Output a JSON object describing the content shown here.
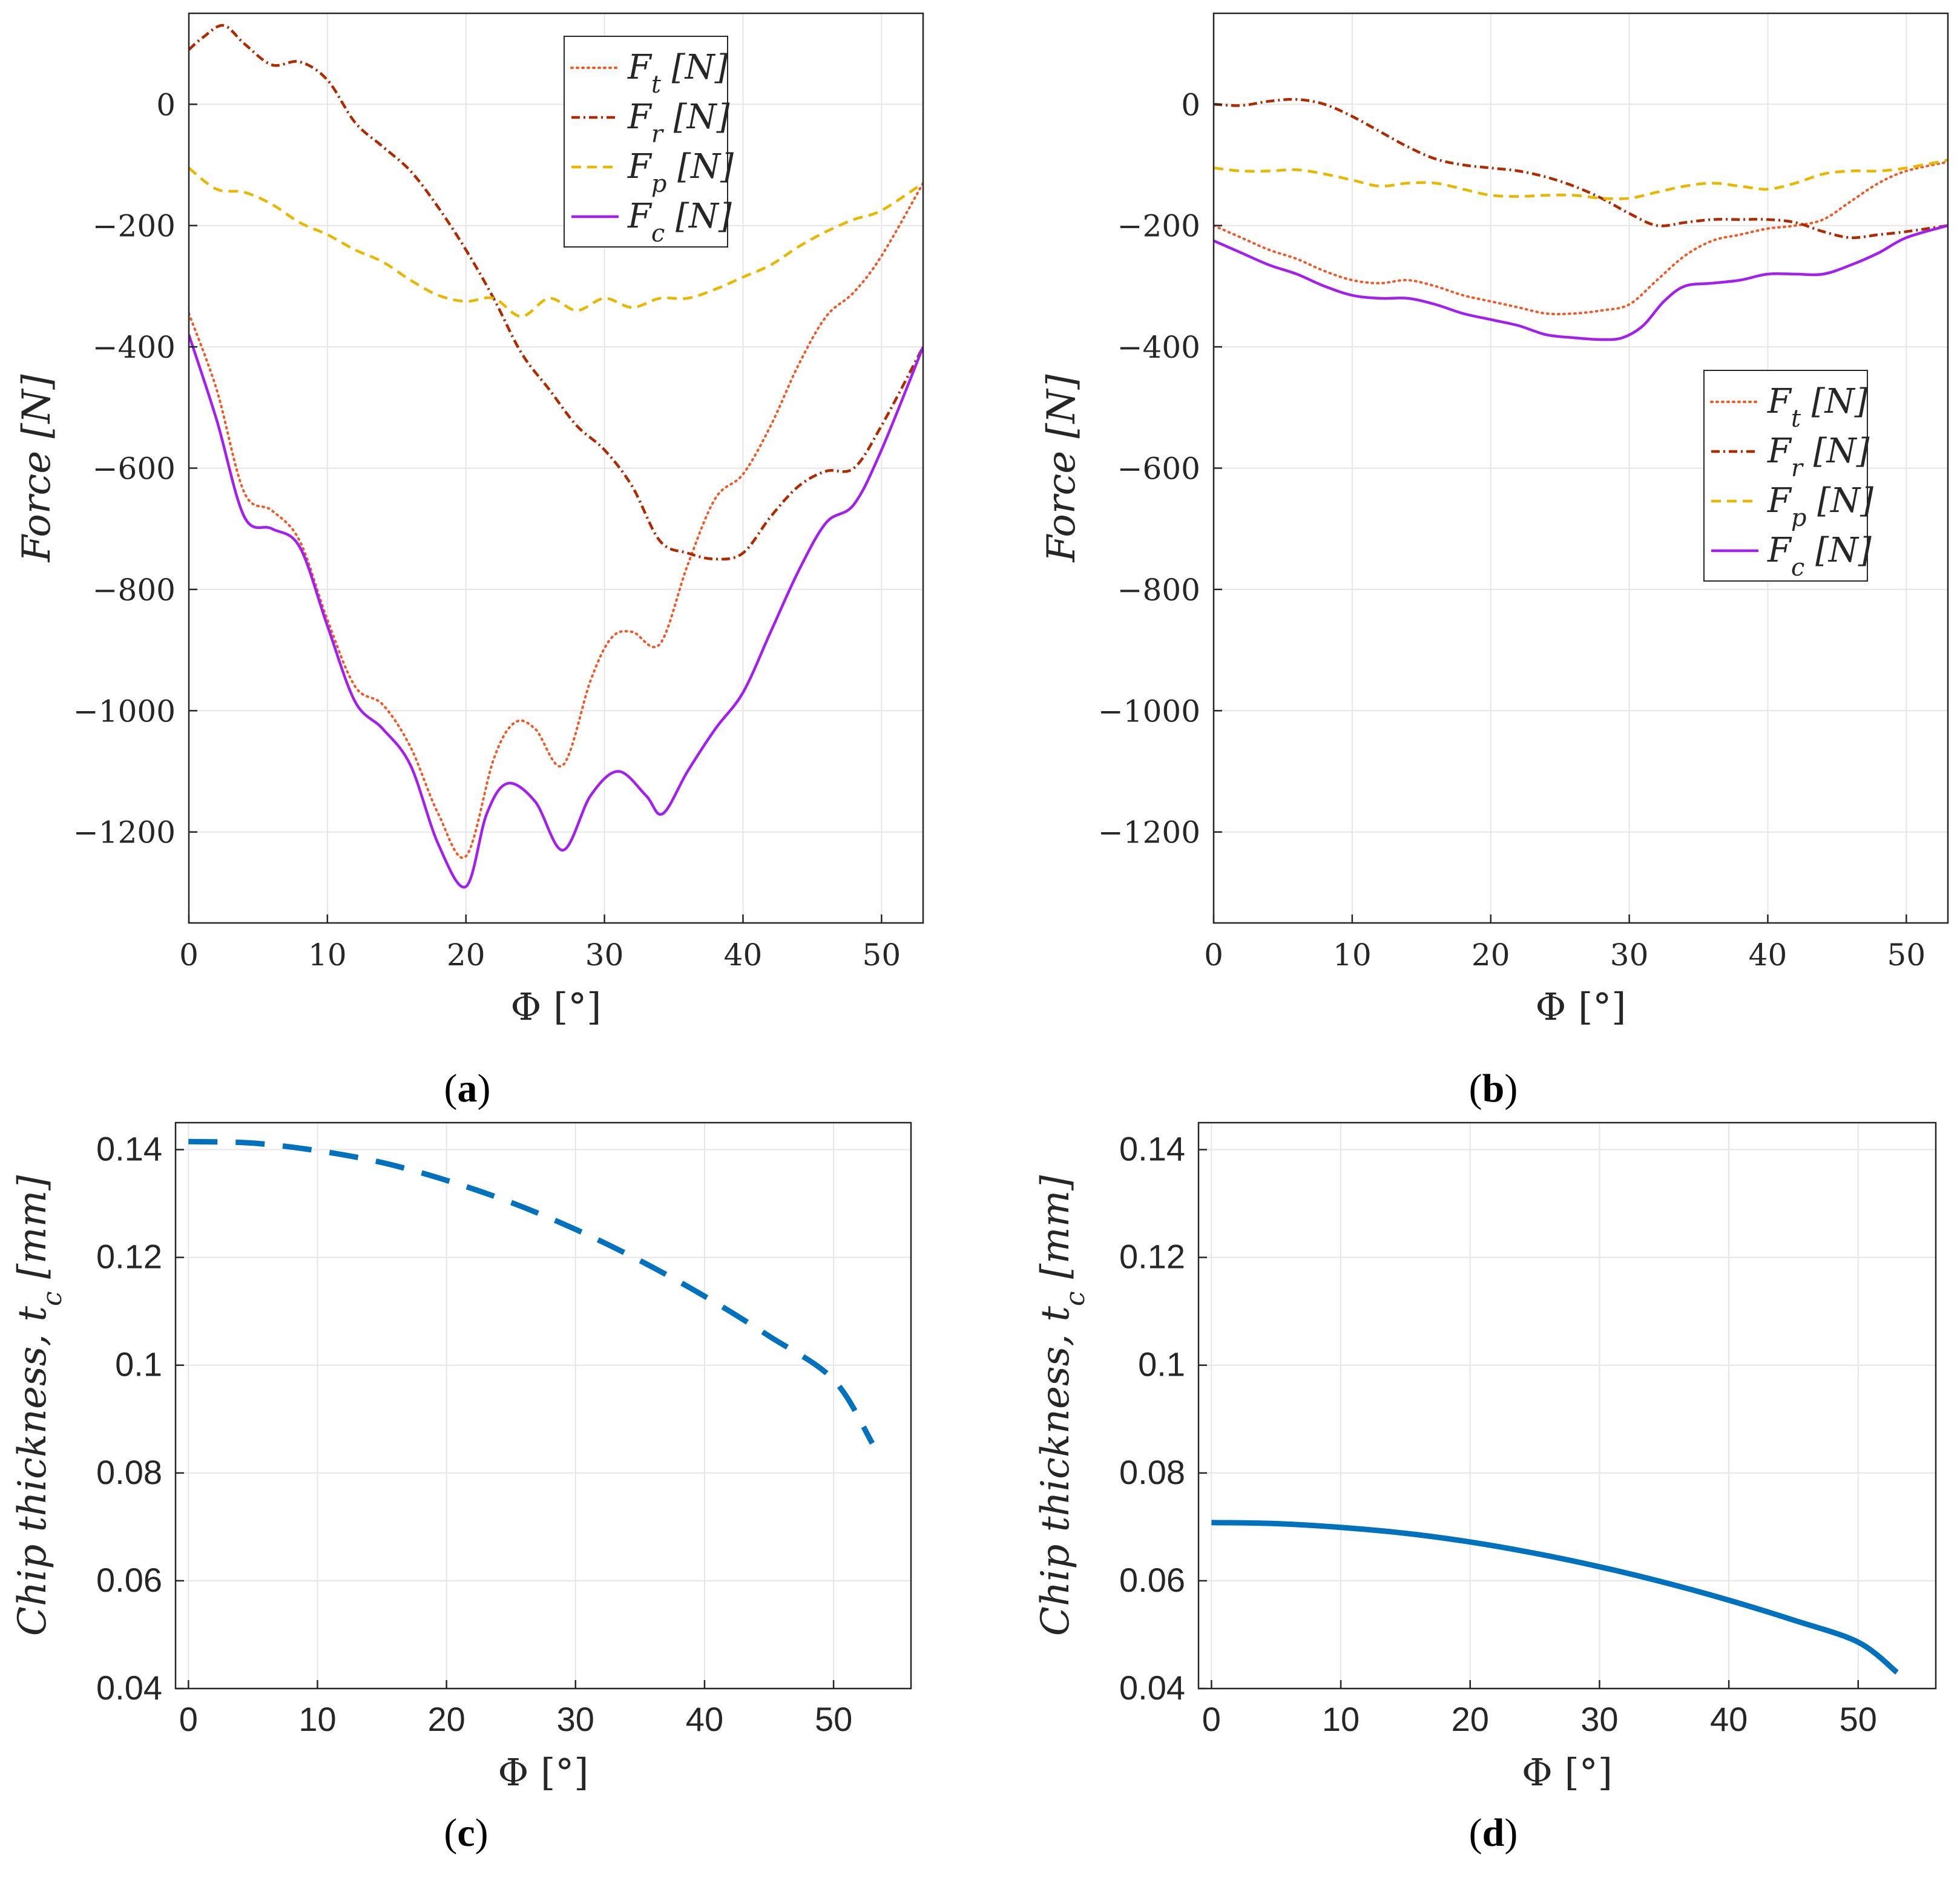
{
  "colors": {
    "Ft": "#f05a28",
    "Fr": "#b02a00",
    "Fp": "#e8b800",
    "Fc": "#a31ff0",
    "chip": "#0072bd",
    "grid": "#e6e6e6",
    "axis": "#262626"
  },
  "chart_data": [
    {
      "id": "a",
      "caption": {
        "open": "(",
        "letter": "a",
        "close": ")"
      },
      "type": "line",
      "ylabel": "Force [N]",
      "xlabel": "Φ [°]",
      "xlim": [
        0,
        53
      ],
      "ylim": [
        -1350,
        150
      ],
      "xticks": [
        0,
        10,
        20,
        30,
        40,
        50
      ],
      "yticks": [
        0,
        -200,
        -400,
        -600,
        -800,
        -1000,
        -1200
      ],
      "ytick_labels": [
        "0",
        "−200",
        "−400",
        "−600",
        "−800",
        "−1000",
        "−1200"
      ],
      "grid": true,
      "legend_position": "top-right",
      "series": [
        {
          "key": "Ft",
          "name": "F",
          "sub": "t",
          "unit": " [N]",
          "style": "dotted",
          "x": [
            0,
            2,
            4,
            6,
            8,
            10,
            12,
            14,
            16,
            18,
            20,
            22,
            23.5,
            25,
            27,
            29,
            30.5,
            32,
            34,
            36,
            38,
            40,
            42,
            44,
            46,
            48,
            50,
            53
          ],
          "y": [
            -345,
            -470,
            -640,
            -670,
            -720,
            -850,
            -960,
            -990,
            -1060,
            -1170,
            -1240,
            -1080,
            -1020,
            -1030,
            -1090,
            -950,
            -880,
            -870,
            -890,
            -760,
            -650,
            -610,
            -530,
            -430,
            -350,
            -310,
            -250,
            -130
          ]
        },
        {
          "key": "Fr",
          "name": "F",
          "sub": "r",
          "unit": " [N]",
          "style": "dashdot",
          "x": [
            0,
            1,
            2.5,
            4,
            6,
            8,
            10,
            12,
            14,
            16,
            18,
            20,
            22,
            24,
            26,
            28,
            30,
            32,
            34,
            36,
            38,
            40,
            42,
            44,
            46,
            48,
            50,
            53
          ],
          "y": [
            90,
            110,
            130,
            100,
            65,
            70,
            40,
            -30,
            -70,
            -110,
            -170,
            -240,
            -320,
            -410,
            -470,
            -530,
            -570,
            -630,
            -720,
            -740,
            -750,
            -740,
            -680,
            -630,
            -605,
            -600,
            -530,
            -400
          ]
        },
        {
          "key": "Fp",
          "name": "F",
          "sub": "p",
          "unit": " [N]",
          "style": "dashed",
          "x": [
            0,
            2,
            4,
            6,
            8,
            10,
            12,
            14,
            16,
            18,
            20,
            22,
            24,
            26,
            28,
            30,
            32,
            34,
            36,
            38,
            40,
            42,
            44,
            46,
            48,
            50,
            53
          ],
          "y": [
            -105,
            -140,
            -145,
            -165,
            -195,
            -215,
            -240,
            -260,
            -290,
            -315,
            -325,
            -320,
            -350,
            -320,
            -340,
            -320,
            -335,
            -320,
            -320,
            -305,
            -285,
            -265,
            -235,
            -210,
            -190,
            -175,
            -130
          ]
        },
        {
          "key": "Fc",
          "name": "F",
          "sub": "c",
          "unit": " [N]",
          "style": "solid",
          "x": [
            0,
            2,
            4,
            6,
            8,
            10,
            12,
            14,
            16,
            18,
            20,
            21.5,
            23,
            25,
            27,
            29,
            31,
            33,
            34.2,
            36,
            38,
            40,
            42,
            44,
            46,
            48,
            50,
            53
          ],
          "y": [
            -380,
            -520,
            -680,
            -700,
            -730,
            -860,
            -985,
            -1030,
            -1090,
            -1220,
            -1290,
            -1170,
            -1120,
            -1150,
            -1230,
            -1140,
            -1100,
            -1140,
            -1170,
            -1100,
            -1030,
            -970,
            -870,
            -770,
            -690,
            -660,
            -570,
            -400
          ]
        }
      ]
    },
    {
      "id": "b",
      "caption": {
        "open": "(",
        "letter": "b",
        "close": ")"
      },
      "type": "line",
      "ylabel": "Force [N]",
      "xlabel": "Φ [°]",
      "xlim": [
        0,
        53
      ],
      "ylim": [
        -1350,
        150
      ],
      "xticks": [
        0,
        10,
        20,
        30,
        40,
        50
      ],
      "yticks": [
        0,
        -200,
        -400,
        -600,
        -800,
        -1000,
        -1200
      ],
      "ytick_labels": [
        "0",
        "−200",
        "−400",
        "−600",
        "−800",
        "−1000",
        "−1200"
      ],
      "grid": true,
      "legend_position": "right",
      "series": [
        {
          "key": "Ft",
          "name": "F",
          "sub": "t",
          "unit": " [N]",
          "style": "dotted",
          "x": [
            0,
            2,
            4,
            6,
            8,
            10,
            12,
            14,
            16,
            18,
            20,
            22,
            24,
            26,
            28,
            30,
            32,
            34,
            36,
            38,
            40,
            42,
            44,
            46,
            48,
            50,
            53
          ],
          "y": [
            -200,
            -220,
            -240,
            -255,
            -275,
            -290,
            -295,
            -290,
            -300,
            -315,
            -325,
            -335,
            -345,
            -345,
            -340,
            -330,
            -290,
            -250,
            -225,
            -215,
            -205,
            -200,
            -190,
            -160,
            -130,
            -110,
            -95
          ]
        },
        {
          "key": "Fr",
          "name": "F",
          "sub": "r",
          "unit": " [N]",
          "style": "dashdot",
          "x": [
            0,
            2,
            4,
            6,
            8,
            10,
            12,
            14,
            16,
            18,
            20,
            22,
            24,
            26,
            28,
            30,
            32,
            34,
            36,
            38,
            40,
            42,
            44,
            46,
            48,
            50,
            53
          ],
          "y": [
            0,
            -2,
            5,
            8,
            0,
            -20,
            -45,
            -70,
            -90,
            -100,
            -105,
            -110,
            -120,
            -135,
            -155,
            -180,
            -200,
            -195,
            -190,
            -190,
            -190,
            -195,
            -210,
            -220,
            -215,
            -210,
            -200
          ]
        },
        {
          "key": "Fp",
          "name": "F",
          "sub": "p",
          "unit": " [N]",
          "style": "dashed",
          "x": [
            0,
            2,
            4,
            6,
            8,
            10,
            12,
            14,
            16,
            18,
            20,
            22,
            24,
            26,
            28,
            30,
            32,
            34,
            36,
            38,
            40,
            42,
            44,
            46,
            48,
            50,
            53
          ],
          "y": [
            -105,
            -110,
            -110,
            -108,
            -115,
            -125,
            -135,
            -130,
            -130,
            -140,
            -150,
            -152,
            -150,
            -150,
            -155,
            -155,
            -145,
            -135,
            -130,
            -135,
            -140,
            -130,
            -115,
            -110,
            -110,
            -105,
            -92
          ]
        },
        {
          "key": "Fc",
          "name": "F",
          "sub": "c",
          "unit": " [N]",
          "style": "solid",
          "x": [
            0,
            2,
            4,
            6,
            8,
            10,
            12,
            14,
            16,
            18,
            20,
            22,
            24,
            26,
            28,
            29.5,
            31,
            32.5,
            34,
            36,
            38,
            40,
            42,
            44,
            46,
            48,
            50,
            53
          ],
          "y": [
            -225,
            -245,
            -265,
            -280,
            -300,
            -315,
            -320,
            -320,
            -330,
            -345,
            -355,
            -365,
            -380,
            -385,
            -388,
            -385,
            -365,
            -325,
            -300,
            -295,
            -290,
            -280,
            -280,
            -280,
            -265,
            -245,
            -220,
            -200
          ]
        }
      ]
    },
    {
      "id": "c",
      "caption": {
        "open": "(",
        "letter": "c",
        "close": ")"
      },
      "type": "line",
      "ylabel_main": "Chip thickness,",
      "ylabel_var": "t",
      "ylabel_sub": "c",
      "ylabel_unit": "[mm]",
      "xlabel": "Φ [°]",
      "xlim": [
        -1,
        56
      ],
      "ylim": [
        0.04,
        0.145
      ],
      "xticks": [
        0,
        10,
        20,
        30,
        40,
        50
      ],
      "yticks": [
        0.04,
        0.06,
        0.08,
        0.1,
        0.12,
        0.14
      ],
      "ytick_labels": [
        "0.04",
        "0.06",
        "0.08",
        "0.1",
        "0.12",
        "0.14"
      ],
      "grid": true,
      "series": [
        {
          "key": "chip",
          "name": "tc",
          "style": "thickdash",
          "x": [
            0,
            5,
            10,
            15,
            20,
            25,
            30,
            35,
            40,
            45,
            50,
            53
          ],
          "y": [
            0.1415,
            0.1412,
            0.1398,
            0.1376,
            0.1343,
            0.1302,
            0.1252,
            0.1194,
            0.1128,
            0.1054,
            0.0973,
            0.0855
          ]
        }
      ]
    },
    {
      "id": "d",
      "caption": {
        "open": "(",
        "letter": "d",
        "close": ")"
      },
      "type": "line",
      "ylabel_main": "Chip thickness,",
      "ylabel_var": "t",
      "ylabel_sub": "c",
      "ylabel_unit": "[mm]",
      "xlabel": "Φ [°]",
      "xlim": [
        -1,
        56
      ],
      "ylim": [
        0.04,
        0.145
      ],
      "xticks": [
        0,
        10,
        20,
        30,
        40,
        50
      ],
      "yticks": [
        0.04,
        0.06,
        0.08,
        0.1,
        0.12,
        0.14
      ],
      "ytick_labels": [
        "0.04",
        "0.06",
        "0.08",
        "0.1",
        "0.12",
        "0.14"
      ],
      "grid": true,
      "series": [
        {
          "key": "chip",
          "name": "tc",
          "style": "thicksolid",
          "x": [
            0,
            5,
            10,
            15,
            20,
            25,
            30,
            35,
            40,
            45,
            50,
            53
          ],
          "y": [
            0.0708,
            0.0706,
            0.0699,
            0.0688,
            0.0672,
            0.0651,
            0.0626,
            0.0597,
            0.0564,
            0.0527,
            0.0486,
            0.043
          ]
        }
      ]
    }
  ]
}
